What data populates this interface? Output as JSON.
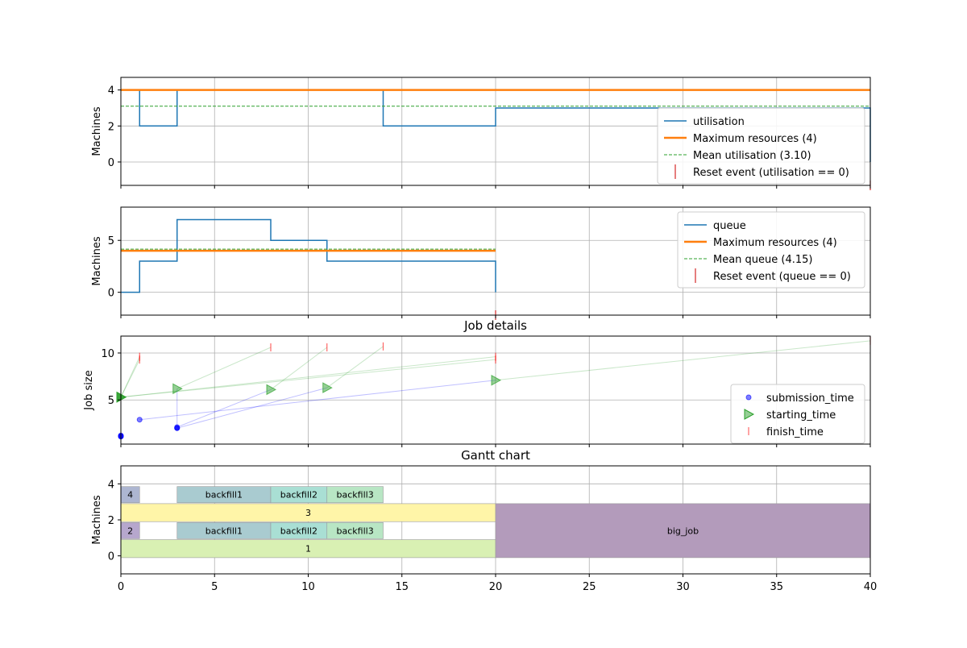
{
  "chart_data": [
    {
      "type": "line",
      "title": "",
      "xlabel": "",
      "ylabel": "Machines",
      "xlim": [
        0,
        40
      ],
      "ylim": [
        -1.3,
        4.7
      ],
      "yticks": [
        0,
        2,
        4
      ],
      "grid": true,
      "legend_position": "lower-right",
      "series": [
        {
          "name": "utilisation",
          "kind": "step",
          "color": "#1f77b4",
          "x": [
            0,
            1,
            3,
            14,
            20,
            40,
            40
          ],
          "y": [
            4,
            2,
            4,
            2,
            3,
            3,
            0
          ]
        },
        {
          "name": "Maximum resources (4)",
          "kind": "hline",
          "color": "#ff7f0e",
          "y": 4,
          "x": [
            0,
            40
          ]
        },
        {
          "name": "Mean utilisation (3.10)",
          "kind": "hline-dashed",
          "color": "#2ca02c",
          "y": 3.1,
          "x": [
            0,
            40
          ]
        },
        {
          "name": "Reset event (utilisation == 0)",
          "kind": "marker",
          "color": "#d62728",
          "x": [
            40
          ],
          "y": [
            -1.3
          ]
        }
      ]
    },
    {
      "type": "line",
      "title": "",
      "xlabel": "",
      "ylabel": "Machines",
      "xlim": [
        0,
        40
      ],
      "ylim": [
        -2.2,
        8.2
      ],
      "yticks": [
        0,
        5
      ],
      "grid": true,
      "legend_position": "upper-right",
      "series": [
        {
          "name": "queue",
          "kind": "step",
          "color": "#1f77b4",
          "x": [
            0,
            1,
            3,
            8,
            11,
            20,
            20
          ],
          "y": [
            0,
            3,
            7,
            5,
            3,
            3,
            0
          ]
        },
        {
          "name": "Maximum resources (4)",
          "kind": "hline",
          "color": "#ff7f0e",
          "y": 4,
          "x": [
            0,
            20
          ]
        },
        {
          "name": "Mean queue (4.15)",
          "kind": "hline-dashed",
          "color": "#2ca02c",
          "y": 4.15,
          "x": [
            0,
            20
          ]
        },
        {
          "name": "Reset event (queue == 0)",
          "kind": "marker",
          "color": "#d62728",
          "x": [
            20
          ],
          "y": [
            -2.2
          ]
        }
      ]
    },
    {
      "type": "scatter",
      "title": "Job details",
      "xlabel": "",
      "ylabel": "Job size",
      "xlim": [
        0,
        40
      ],
      "ylim": [
        0.3,
        11.8
      ],
      "yticks": [
        5,
        10
      ],
      "grid": true,
      "legend_position": "lower-right",
      "legend": [
        "submission_time",
        "starting_time",
        "finish_time"
      ],
      "jobs": [
        {
          "submit": [
            0,
            1.1
          ],
          "start": [
            0,
            5.3
          ],
          "finish": [
            1,
            9.3
          ]
        },
        {
          "submit": [
            0,
            1.2
          ],
          "start": [
            0,
            5.3
          ],
          "finish": [
            1,
            9.6
          ]
        },
        {
          "submit": [
            0,
            1.1
          ],
          "start": [
            0,
            5.3
          ],
          "finish": [
            20,
            9.3
          ]
        },
        {
          "submit": [
            0,
            1.2
          ],
          "start": [
            0,
            5.3
          ],
          "finish": [
            20,
            9.6
          ]
        },
        {
          "submit": [
            1,
            2.9
          ],
          "start": [
            20,
            7.1
          ],
          "finish": [
            40,
            11.3
          ]
        },
        {
          "submit": [
            3,
            2.0
          ],
          "start": [
            3,
            6.2
          ],
          "finish": [
            8,
            10.6
          ]
        },
        {
          "submit": [
            3,
            2.1
          ],
          "start": [
            8,
            6.1
          ],
          "finish": [
            11,
            10.6
          ]
        },
        {
          "submit": [
            3,
            2.0
          ],
          "start": [
            11,
            6.3
          ],
          "finish": [
            14,
            10.7
          ]
        }
      ]
    },
    {
      "type": "bar",
      "title": "Gantt chart",
      "xlabel": "",
      "ylabel": "Machines",
      "xlim": [
        0,
        40
      ],
      "ylim": [
        -1,
        5
      ],
      "yticks": [
        0,
        2,
        4
      ],
      "xticks": [
        0,
        5,
        10,
        15,
        20,
        25,
        30,
        35,
        40
      ],
      "grid": true,
      "bars": [
        {
          "label": "1",
          "start": 0,
          "end": 20,
          "y0": -0.1,
          "y1": 0.9,
          "color": "#d9f0b3"
        },
        {
          "label": "2",
          "start": 0,
          "end": 1,
          "y0": 0.95,
          "y1": 1.85,
          "color": "#b6a7cd"
        },
        {
          "label": "backfill1",
          "start": 3,
          "end": 8,
          "y0": 0.95,
          "y1": 1.85,
          "color": "#a9cbd0"
        },
        {
          "label": "backfill2",
          "start": 8,
          "end": 11,
          "y0": 0.95,
          "y1": 1.85,
          "color": "#a9dfd4"
        },
        {
          "label": "backfill3",
          "start": 11,
          "end": 14,
          "y0": 0.95,
          "y1": 1.85,
          "color": "#b8e6c4"
        },
        {
          "label": "3",
          "start": 0,
          "end": 20,
          "y0": 1.9,
          "y1": 2.9,
          "color": "#fff5a8"
        },
        {
          "label": "4",
          "start": 0,
          "end": 1,
          "y0": 2.95,
          "y1": 3.85,
          "color": "#adb6d1"
        },
        {
          "label": "backfill1",
          "start": 3,
          "end": 8,
          "y0": 2.95,
          "y1": 3.85,
          "color": "#a9cbd0"
        },
        {
          "label": "backfill2",
          "start": 8,
          "end": 11,
          "y0": 2.95,
          "y1": 3.85,
          "color": "#a9dfd4"
        },
        {
          "label": "backfill3",
          "start": 11,
          "end": 14,
          "y0": 2.95,
          "y1": 3.85,
          "color": "#b8e6c4"
        },
        {
          "label": "big_job",
          "start": 20,
          "end": 40,
          "y0": -0.1,
          "y1": 2.9,
          "color": "#b39bbb"
        }
      ]
    }
  ]
}
